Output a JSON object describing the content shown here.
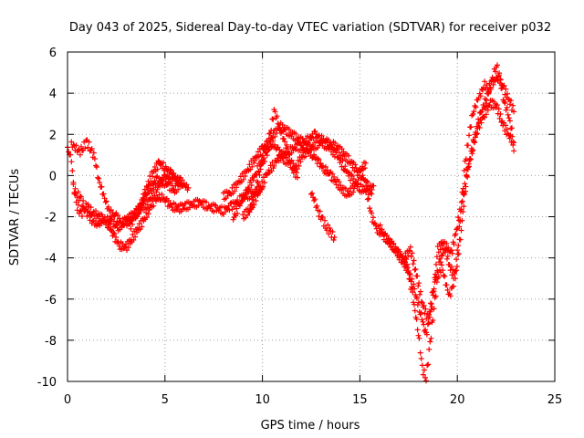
{
  "chart_data": {
    "type": "scatter",
    "title": "Day 043 of 2025, Sidereal Day-to-day VTEC variation (SDTVAR) for receiver p032",
    "xlabel": "GPS time / hours",
    "ylabel": "SDTVAR / TECUs",
    "xlim": [
      0,
      25
    ],
    "ylim": [
      -10,
      6
    ],
    "xticks": [
      0,
      5,
      10,
      15,
      20,
      25
    ],
    "yticks": [
      -10,
      -8,
      -6,
      -4,
      -2,
      0,
      2,
      4,
      6
    ],
    "grid": true,
    "marker": "+",
    "series": [
      {
        "name": "SDTVAR",
        "color": "#ff0000",
        "tracks": [
          {
            "x": [
              0.0,
              0.2,
              0.3,
              0.5,
              0.7,
              0.9,
              1.1,
              1.3,
              1.5,
              1.8,
              2.1,
              2.4,
              2.7,
              3.0,
              3.3,
              3.6,
              3.9,
              4.2,
              4.5,
              4.8,
              5.1,
              5.4,
              5.7,
              6.0,
              6.4,
              6.8,
              7.2,
              7.6,
              8.0,
              8.4,
              8.8,
              9.2,
              9.6,
              10.0
            ],
            "y": [
              1.3,
              0.8,
              -0.5,
              -1.5,
              -1.9,
              -1.5,
              -1.6,
              -1.8,
              -1.9,
              -2.1,
              -2.4,
              -3.0,
              -3.4,
              -3.5,
              -3.1,
              -2.6,
              -2.2,
              -1.6,
              -1.2,
              -1.0,
              -1.3,
              -1.5,
              -1.6,
              -1.5,
              -1.4,
              -1.3,
              -1.5,
              -1.6,
              -1.7,
              -1.5,
              -1.2,
              -1.0,
              -0.8,
              -0.6
            ]
          },
          {
            "x": [
              0.2,
              0.4,
              0.6,
              0.8,
              1.0,
              1.2,
              1.4,
              1.6,
              1.8,
              2.0,
              2.2,
              2.5,
              2.8,
              3.1,
              3.4,
              3.7,
              4.0,
              4.3,
              4.6,
              4.9,
              5.2,
              5.5,
              5.8
            ],
            "y": [
              1.5,
              1.4,
              1.1,
              1.4,
              1.6,
              1.3,
              0.8,
              -0.2,
              -0.8,
              -1.4,
              -1.8,
              -2.0,
              -2.3,
              -2.1,
              -1.9,
              -1.6,
              -1.0,
              -0.5,
              -0.2,
              -0.3,
              -0.5,
              -0.7,
              -0.4
            ]
          },
          {
            "x": [
              0.3,
              0.5,
              0.7,
              0.9,
              1.1,
              1.3,
              1.5,
              1.7,
              2.0,
              2.3,
              2.6,
              3.0,
              3.4,
              3.8,
              4.2,
              4.6,
              5.0,
              5.4,
              5.8,
              6.2
            ],
            "y": [
              -0.6,
              -0.9,
              -1.2,
              -1.6,
              -2.0,
              -2.2,
              -2.4,
              -2.3,
              -2.1,
              -2.3,
              -2.5,
              -2.3,
              -2.0,
              -1.6,
              -1.2,
              -0.6,
              -0.1,
              0.0,
              -0.3,
              -0.6
            ]
          },
          {
            "x": [
              3.2,
              3.5,
              3.8,
              4.1,
              4.4,
              4.7,
              5.0,
              5.3,
              5.6,
              5.9
            ],
            "y": [
              -2.5,
              -1.9,
              -1.3,
              -0.5,
              0.2,
              0.6,
              0.4,
              0.1,
              -0.2,
              -0.5
            ]
          },
          {
            "x": [
              8.0,
              8.4,
              8.8,
              9.2,
              9.6,
              10.0,
              10.3,
              10.6,
              10.9,
              11.2,
              11.5,
              11.8,
              12.1,
              12.4,
              12.7,
              13.0,
              13.3,
              13.6,
              13.9,
              14.2,
              14.5,
              14.8,
              15.1,
              15.4,
              15.6
            ],
            "y": [
              -1.0,
              -0.8,
              -0.3,
              0.2,
              0.8,
              1.3,
              1.6,
              2.0,
              2.4,
              2.2,
              2.0,
              1.8,
              1.6,
              1.8,
              2.0,
              1.8,
              1.6,
              1.5,
              1.3,
              1.0,
              0.7,
              0.3,
              0.0,
              -0.5,
              -0.9
            ]
          },
          {
            "x": [
              9.0,
              9.4,
              9.8,
              10.2,
              10.6,
              11.0,
              11.4,
              11.8,
              12.2,
              12.6,
              13.0,
              13.4,
              13.8,
              14.2,
              14.6,
              15.0,
              15.4,
              15.7
            ],
            "y": [
              -2.0,
              -1.6,
              -0.8,
              0.0,
              0.6,
              1.0,
              1.2,
              1.4,
              1.3,
              1.4,
              1.6,
              1.4,
              1.0,
              0.4,
              -0.2,
              -0.6,
              -0.8,
              -0.5
            ]
          },
          {
            "x": [
              9.3,
              9.6,
              9.9,
              10.2,
              10.5,
              10.8,
              11.1,
              11.4,
              11.7,
              12.0,
              12.3,
              12.6,
              12.9,
              13.2,
              13.5,
              13.8,
              14.1,
              14.4,
              14.7,
              15.0,
              15.3
            ],
            "y": [
              -1.8,
              -1.0,
              0.4,
              1.0,
              1.6,
              1.2,
              0.8,
              0.6,
              0.3,
              0.9,
              1.2,
              1.0,
              0.6,
              0.3,
              0.0,
              -0.3,
              -0.7,
              -0.9,
              -0.6,
              0.2,
              0.6
            ]
          },
          {
            "x": [
              8.5,
              8.8,
              9.1,
              9.4,
              9.7,
              10.0,
              10.2,
              10.4,
              10.6,
              10.8,
              11.0,
              11.2,
              11.4,
              11.6,
              11.8
            ],
            "y": [
              -2.1,
              -1.5,
              -0.9,
              -0.4,
              0.2,
              0.8,
              1.4,
              2.0,
              3.2,
              2.6,
              2.0,
              1.5,
              0.9,
              0.3,
              -0.1
            ]
          },
          {
            "x": [
              12.5,
              12.7,
              12.9,
              13.1,
              13.3,
              13.5,
              13.7
            ],
            "y": [
              -0.8,
              -1.3,
              -1.8,
              -2.2,
              -2.5,
              -2.8,
              -3.0
            ]
          },
          {
            "x": [
              15.4,
              15.6,
              15.9,
              16.2,
              16.5,
              16.8,
              17.1,
              17.4,
              17.7,
              18.0,
              18.2,
              18.4,
              18.6,
              18.8,
              19.0,
              19.2,
              19.4,
              19.6,
              19.8,
              20.0,
              20.2,
              20.4,
              20.6,
              20.8,
              21.0,
              21.2,
              21.4,
              21.6,
              21.8,
              22.0,
              22.2,
              22.4,
              22.6,
              22.8,
              22.9
            ],
            "y": [
              -1.0,
              -2.0,
              -2.6,
              -2.9,
              -3.2,
              -3.6,
              -3.9,
              -4.3,
              -5.8,
              -7.6,
              -9.4,
              -9.8,
              -8.2,
              -6.4,
              -5.0,
              -4.4,
              -5.2,
              -5.9,
              -5.2,
              -3.8,
              -1.5,
              0.6,
              2.0,
              3.0,
              3.6,
              4.0,
              4.4,
              4.2,
              4.6,
              5.4,
              4.6,
              3.6,
              3.0,
              2.2,
              1.2
            ]
          },
          {
            "x": [
              16.0,
              16.3,
              16.6,
              16.9,
              17.2,
              17.5,
              17.8,
              18.1,
              18.4,
              18.7,
              19.0,
              19.3,
              19.6,
              19.9,
              20.2,
              20.5,
              20.8,
              21.1,
              21.4,
              21.7,
              22.0,
              22.3,
              22.6,
              22.9
            ],
            "y": [
              -2.5,
              -3.0,
              -3.3,
              -3.7,
              -4.2,
              -4.6,
              -5.6,
              -6.6,
              -7.8,
              -6.2,
              -3.6,
              -3.2,
              -4.4,
              -5.0,
              -2.6,
              0.2,
              1.4,
              2.4,
              3.0,
              3.5,
              3.4,
              2.6,
              2.0,
              1.6
            ]
          },
          {
            "x": [
              17.3,
              17.6,
              17.9,
              18.2,
              18.5,
              18.8,
              19.1,
              19.4,
              19.7,
              20.0,
              20.3,
              20.6,
              20.9,
              21.2,
              21.5,
              21.8,
              22.1,
              22.4,
              22.7,
              22.9
            ],
            "y": [
              -4.0,
              -3.6,
              -4.8,
              -6.2,
              -7.0,
              -5.4,
              -4.2,
              -3.4,
              -3.8,
              -2.4,
              -1.0,
              0.5,
              2.0,
              3.0,
              3.8,
              4.5,
              4.8,
              4.2,
              3.6,
              3.1
            ]
          }
        ]
      }
    ]
  }
}
